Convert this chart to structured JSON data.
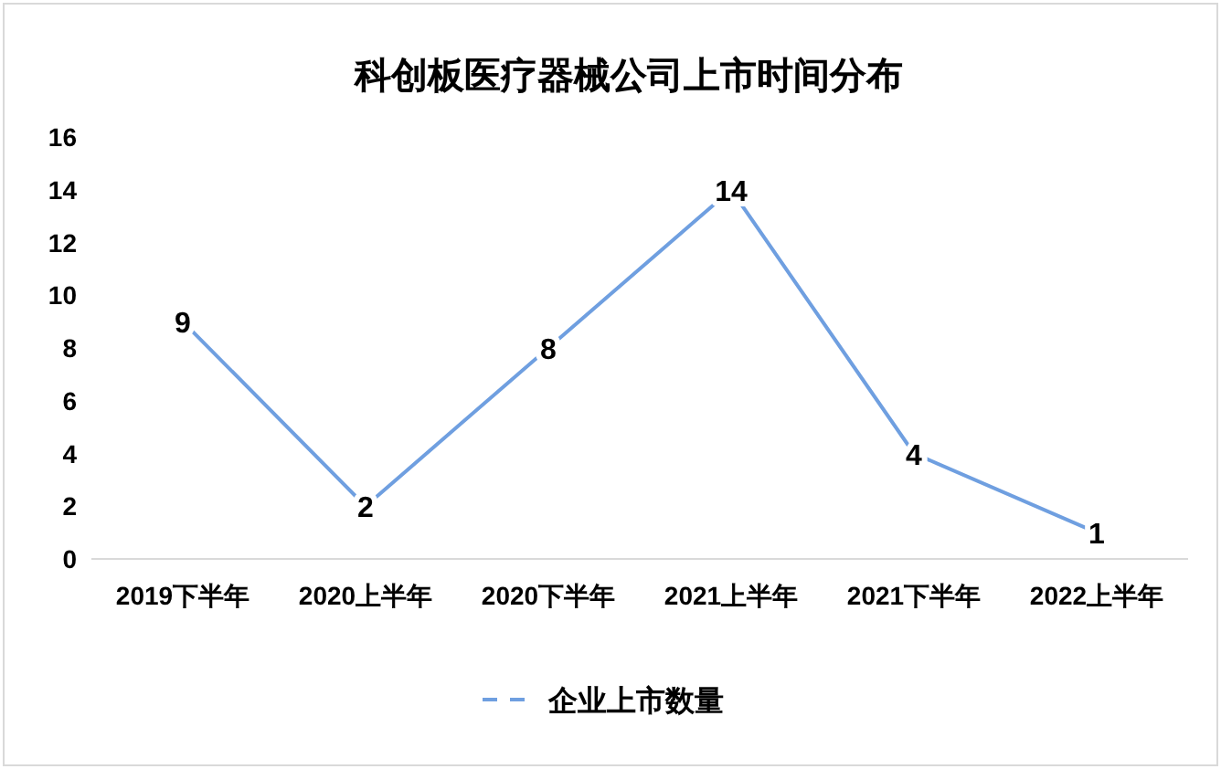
{
  "chart_data": {
    "type": "line",
    "title": "科创板医疗器械公司上市时间分布",
    "categories": [
      "2019下半年",
      "2020上半年",
      "2020下半年",
      "2021上半年",
      "2021下半年",
      "2022上半年"
    ],
    "series": [
      {
        "name": "企业上市数量",
        "color": "#6f9fe0",
        "values": [
          9,
          2,
          8,
          14,
          4,
          1
        ]
      }
    ],
    "ylim": [
      0,
      16
    ],
    "yticks": [
      0,
      2,
      4,
      6,
      8,
      10,
      12,
      14,
      16
    ],
    "data_labels": true,
    "legend": "bottom",
    "grid": false,
    "marker": "none",
    "line_style": "solid"
  }
}
